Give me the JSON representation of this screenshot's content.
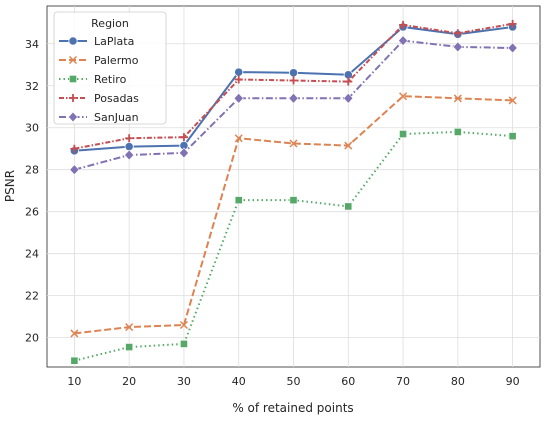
{
  "chart_data": {
    "type": "line",
    "xlabel": "% of retained points",
    "ylabel": "PSNR",
    "x": [
      10,
      20,
      30,
      40,
      50,
      60,
      70,
      80,
      90
    ],
    "xlim": [
      5,
      95
    ],
    "ylim": [
      18.6,
      35.8
    ],
    "yticks": [
      20,
      22,
      24,
      26,
      28,
      30,
      32,
      34
    ],
    "grid": true,
    "legend": {
      "title": "Region",
      "placement": "top-left"
    },
    "series": [
      {
        "name": "LaPlata",
        "color": "#4c72b0",
        "marker": "circle",
        "dash": "solid",
        "values": [
          28.9,
          29.1,
          29.15,
          32.65,
          32.62,
          32.52,
          34.8,
          34.45,
          34.8
        ]
      },
      {
        "name": "Palermo",
        "color": "#dd8452",
        "marker": "x",
        "dash": "dashed",
        "values": [
          20.2,
          20.5,
          20.6,
          29.5,
          29.25,
          29.15,
          31.5,
          31.4,
          31.3
        ]
      },
      {
        "name": "Retiro",
        "color": "#55a868",
        "marker": "square",
        "dash": "dotted",
        "values": [
          18.9,
          19.55,
          19.7,
          26.55,
          26.55,
          26.25,
          29.7,
          29.8,
          29.6
        ]
      },
      {
        "name": "Posadas",
        "color": "#c44e52",
        "marker": "plus",
        "dash": "dashdot-red",
        "values": [
          29.0,
          29.5,
          29.55,
          32.3,
          32.25,
          32.2,
          34.9,
          34.5,
          34.95
        ]
      },
      {
        "name": "SanJuan",
        "color": "#8172b3",
        "marker": "diamond",
        "dash": "dashdot",
        "values": [
          28.0,
          28.7,
          28.8,
          31.4,
          31.4,
          31.4,
          34.15,
          33.85,
          33.8
        ]
      }
    ]
  }
}
